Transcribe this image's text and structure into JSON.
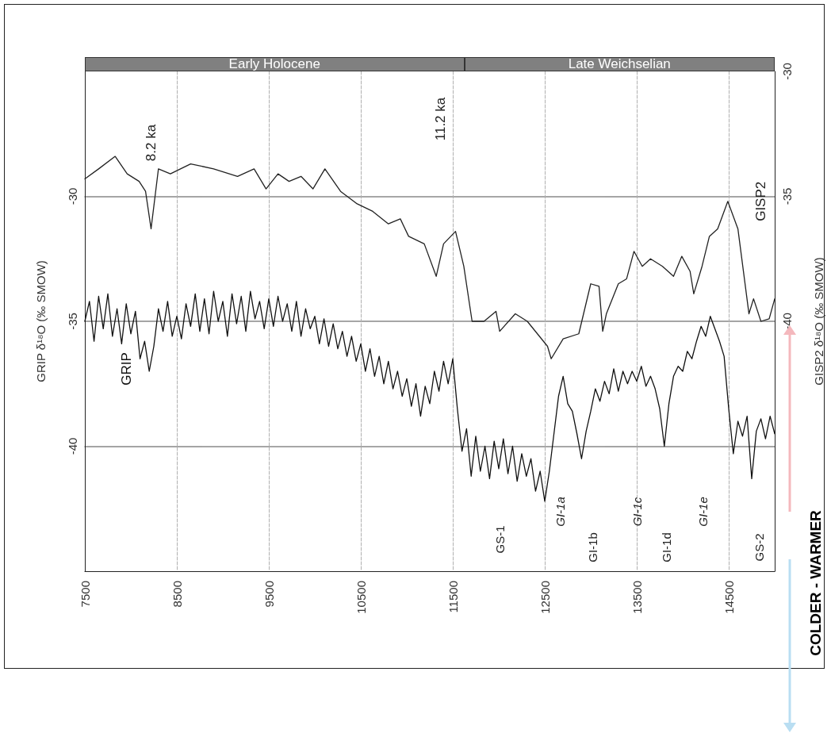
{
  "chart_data": {
    "type": "line",
    "xlim": [
      7500,
      15000
    ],
    "xticks": [
      7500,
      8500,
      9500,
      10500,
      11500,
      12500,
      13500,
      14500
    ],
    "ylabel": "GRIP δ¹⁸O (‰ SMOW)",
    "ylim": [
      -45,
      -25
    ],
    "yticks": [
      -30,
      -35,
      -40
    ],
    "y2label": "GISP2 δ¹⁸O (‰ SMOW)",
    "y2lim": [
      -50,
      -30
    ],
    "y2ticks": [
      -30,
      -35,
      -40
    ],
    "grid": true,
    "legend": false,
    "marker": "none",
    "line_style": "solid",
    "series": [
      {
        "name": "GISP2",
        "axis": "y2",
        "color": "#222222",
        "x": [
          7500,
          7650,
          7830,
          7960,
          8090,
          8160,
          8220,
          8300,
          8430,
          8650,
          8900,
          9160,
          9340,
          9470,
          9600,
          9720,
          9850,
          9980,
          10110,
          10280,
          10460,
          10630,
          10800,
          10930,
          11020,
          11190,
          11320,
          11400,
          11530,
          11620,
          11710,
          11840,
          11970,
          12010,
          12180,
          12310,
          12530,
          12570,
          12700,
          12870,
          13000,
          13090,
          13130,
          13170,
          13300,
          13390,
          13470,
          13560,
          13650,
          13780,
          13900,
          13990,
          14080,
          14120,
          14210,
          14290,
          14380,
          14490,
          14600,
          14720,
          14770,
          14850,
          14940,
          15000
        ],
        "values": [
          -34.3,
          -33.9,
          -33.4,
          -34.1,
          -34.4,
          -34.8,
          -36.3,
          -33.9,
          -34.1,
          -33.7,
          -33.9,
          -34.2,
          -33.9,
          -34.7,
          -34.1,
          -34.4,
          -34.2,
          -34.7,
          -33.9,
          -34.8,
          -35.3,
          -35.6,
          -36.1,
          -35.9,
          -36.6,
          -36.9,
          -38.2,
          -36.9,
          -36.4,
          -37.8,
          -40.0,
          -40.0,
          -39.6,
          -40.4,
          -39.7,
          -40.0,
          -41.0,
          -41.5,
          -40.7,
          -40.5,
          -38.5,
          -38.6,
          -40.4,
          -39.7,
          -38.5,
          -38.3,
          -37.2,
          -37.8,
          -37.5,
          -37.8,
          -38.2,
          -37.4,
          -38.0,
          -38.9,
          -37.8,
          -36.6,
          -36.3,
          -35.2,
          -36.3,
          -39.7,
          -39.1,
          -40.0,
          -39.9,
          -39.1
        ]
      },
      {
        "name": "GRIP",
        "color": "#111111",
        "x": [
          7500,
          7550,
          7600,
          7650,
          7700,
          7750,
          7800,
          7850,
          7900,
          7950,
          8000,
          8050,
          8100,
          8150,
          8200,
          8250,
          8300,
          8350,
          8400,
          8450,
          8500,
          8550,
          8600,
          8650,
          8700,
          8750,
          8800,
          8850,
          8900,
          8950,
          9000,
          9050,
          9100,
          9150,
          9200,
          9250,
          9300,
          9350,
          9400,
          9450,
          9500,
          9550,
          9600,
          9650,
          9700,
          9750,
          9800,
          9850,
          9900,
          9950,
          10000,
          10050,
          10100,
          10150,
          10200,
          10250,
          10300,
          10350,
          10400,
          10450,
          10500,
          10550,
          10600,
          10650,
          10700,
          10750,
          10800,
          10850,
          10900,
          10950,
          11000,
          11050,
          11100,
          11150,
          11200,
          11250,
          11300,
          11350,
          11400,
          11450,
          11500,
          11550,
          11600,
          11650,
          11700,
          11750,
          11800,
          11850,
          11900,
          11950,
          12000,
          12050,
          12100,
          12150,
          12200,
          12250,
          12300,
          12350,
          12400,
          12450,
          12500,
          12550,
          12600,
          12650,
          12700,
          12750,
          12800,
          12850,
          12900,
          12950,
          13000,
          13050,
          13100,
          13150,
          13200,
          13250,
          13300,
          13350,
          13400,
          13450,
          13500,
          13550,
          13600,
          13650,
          13700,
          13750,
          13800,
          13850,
          13900,
          13950,
          14000,
          14050,
          14100,
          14150,
          14200,
          14250,
          14300,
          14350,
          14400,
          14450,
          14500,
          14550,
          14600,
          14650,
          14700,
          14750,
          14800,
          14850,
          14900,
          14950,
          15000
        ],
        "values": [
          -35.0,
          -34.2,
          -35.8,
          -34.0,
          -35.3,
          -33.9,
          -35.6,
          -34.5,
          -35.9,
          -34.3,
          -35.5,
          -34.6,
          -36.5,
          -35.8,
          -37.0,
          -36.0,
          -34.5,
          -35.4,
          -34.2,
          -35.6,
          -34.8,
          -35.7,
          -34.3,
          -35.2,
          -33.9,
          -35.4,
          -34.1,
          -35.5,
          -33.8,
          -35.0,
          -34.2,
          -35.6,
          -33.9,
          -35.1,
          -34.0,
          -35.4,
          -33.8,
          -34.9,
          -34.2,
          -35.3,
          -34.1,
          -35.2,
          -34.0,
          -35.0,
          -34.3,
          -35.4,
          -34.2,
          -35.6,
          -34.5,
          -35.3,
          -34.8,
          -35.9,
          -34.9,
          -36.0,
          -35.1,
          -36.1,
          -35.4,
          -36.4,
          -35.6,
          -36.6,
          -35.9,
          -37.0,
          -36.1,
          -37.2,
          -36.4,
          -37.5,
          -36.6,
          -37.7,
          -37.0,
          -38.0,
          -37.3,
          -38.4,
          -37.5,
          -38.8,
          -37.6,
          -38.3,
          -37.0,
          -37.8,
          -36.6,
          -37.5,
          -36.5,
          -38.5,
          -40.2,
          -39.3,
          -41.2,
          -39.6,
          -41.0,
          -40.0,
          -41.3,
          -39.8,
          -40.9,
          -39.7,
          -41.1,
          -40.0,
          -41.4,
          -40.3,
          -41.2,
          -40.5,
          -41.8,
          -41.0,
          -42.2,
          -41.0,
          -39.5,
          -38.0,
          -37.2,
          -38.3,
          -38.6,
          -39.5,
          -40.5,
          -39.4,
          -38.6,
          -37.7,
          -38.2,
          -37.4,
          -37.9,
          -36.9,
          -37.8,
          -37.0,
          -37.5,
          -37.0,
          -37.4,
          -36.8,
          -37.6,
          -37.2,
          -37.7,
          -38.5,
          -40.0,
          -38.3,
          -37.2,
          -36.8,
          -37.0,
          -36.2,
          -36.5,
          -35.8,
          -35.2,
          -35.6,
          -34.8,
          -35.3,
          -35.8,
          -36.4,
          -38.5,
          -40.3,
          -39.0,
          -39.6,
          -38.8,
          -41.3,
          -39.4,
          -38.9,
          -39.7,
          -38.8,
          -39.5
        ]
      }
    ],
    "annotations": [
      "8.2 ka",
      "11.2 ka",
      "GS-1",
      "GI-1a",
      "GI-1b",
      "GI-1c",
      "GI-1d",
      "GI-1e",
      "GS-2",
      "COLDER - WARMER",
      "Early Holocene",
      "Late Weichselian"
    ]
  }
}
